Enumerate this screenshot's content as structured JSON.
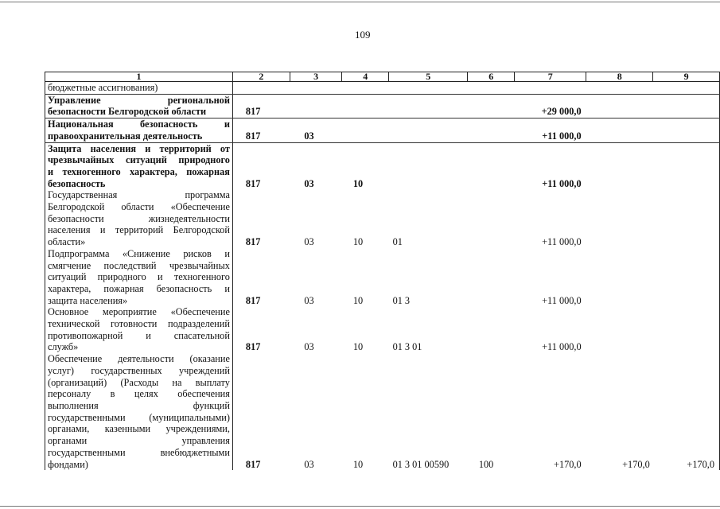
{
  "page_number": "109",
  "columns": [
    "1",
    "2",
    "3",
    "4",
    "5",
    "6",
    "7",
    "8",
    "9"
  ],
  "rows": [
    {
      "name": [
        "бюджетные ассигнования)"
      ],
      "bold": false,
      "c2": "",
      "c3": "",
      "c4": "",
      "c5": "",
      "c6": "",
      "c7": "",
      "c8": "",
      "c9": ""
    },
    {
      "name": [
        "Управление региональной",
        "безопасности Белгородской области"
      ],
      "bold": true,
      "c2": "817",
      "c3": "",
      "c4": "",
      "c5": "",
      "c6": "",
      "c7": "+29 000,0",
      "c8": "",
      "c9": ""
    },
    {
      "name": [
        "Национальная безопасность и",
        "правоохранительная деятельность"
      ],
      "bold": true,
      "c2": "817",
      "c3": "03",
      "c4": "",
      "c5": "",
      "c6": "",
      "c7": "+11 000,0",
      "c8": "",
      "c9": ""
    },
    {
      "name": [
        "Защита населения и территорий от",
        "чрезвычайных ситуаций природного",
        "и техногенного характера, пожарная",
        "безопасность"
      ],
      "bold": true,
      "c2": "817",
      "c3": "03",
      "c4": "10",
      "c5": "",
      "c6": "",
      "c7": "+11 000,0",
      "c8": "",
      "c9": ""
    },
    {
      "name": [
        "Государственная программа",
        "Белгородской области «Обеспечение",
        "безопасности жизнедеятельности",
        "населения и территорий Белгородской",
        "области»"
      ],
      "bold": false,
      "c2": "817",
      "c3": "03",
      "c4": "10",
      "c5": "01",
      "c6": "",
      "c7": "+11 000,0",
      "c8": "",
      "c9": ""
    },
    {
      "name": [
        "Подпрограмма «Снижение рисков и",
        "смягчение последствий чрезвычайных",
        "ситуаций природного и техногенного",
        "характера, пожарная безопасность и",
        "защита населения»"
      ],
      "bold": false,
      "c2": "817",
      "c3": "03",
      "c4": "10",
      "c5": "01 3",
      "c6": "",
      "c7": "+11 000,0",
      "c8": "",
      "c9": ""
    },
    {
      "name": [
        "Основное мероприятие «Обеспечение",
        "технической готовности подразделений",
        "противопожарной и спасательной",
        "служб»"
      ],
      "bold": false,
      "c2": "817",
      "c3": "03",
      "c4": "10",
      "c5": "01 3 01",
      "c6": "",
      "c7": "+11 000,0",
      "c8": "",
      "c9": ""
    },
    {
      "name": [
        "Обеспечение деятельности (оказание",
        "услуг) государственных учреждений",
        "(организаций) (Расходы на выплату",
        "персоналу в целях обеспечения",
        "выполнения функций",
        "государственными (муниципальными)",
        "органами, казенными учреждениями,",
        "органами управления",
        "государственными внебюджетными",
        "фондами)"
      ],
      "bold": false,
      "c2": "817",
      "c3": "03",
      "c4": "10",
      "c5": "01 3 01 00590",
      "c6": "100",
      "c7": "+170,0",
      "c8": "+170,0",
      "c9": "+170,0"
    }
  ]
}
